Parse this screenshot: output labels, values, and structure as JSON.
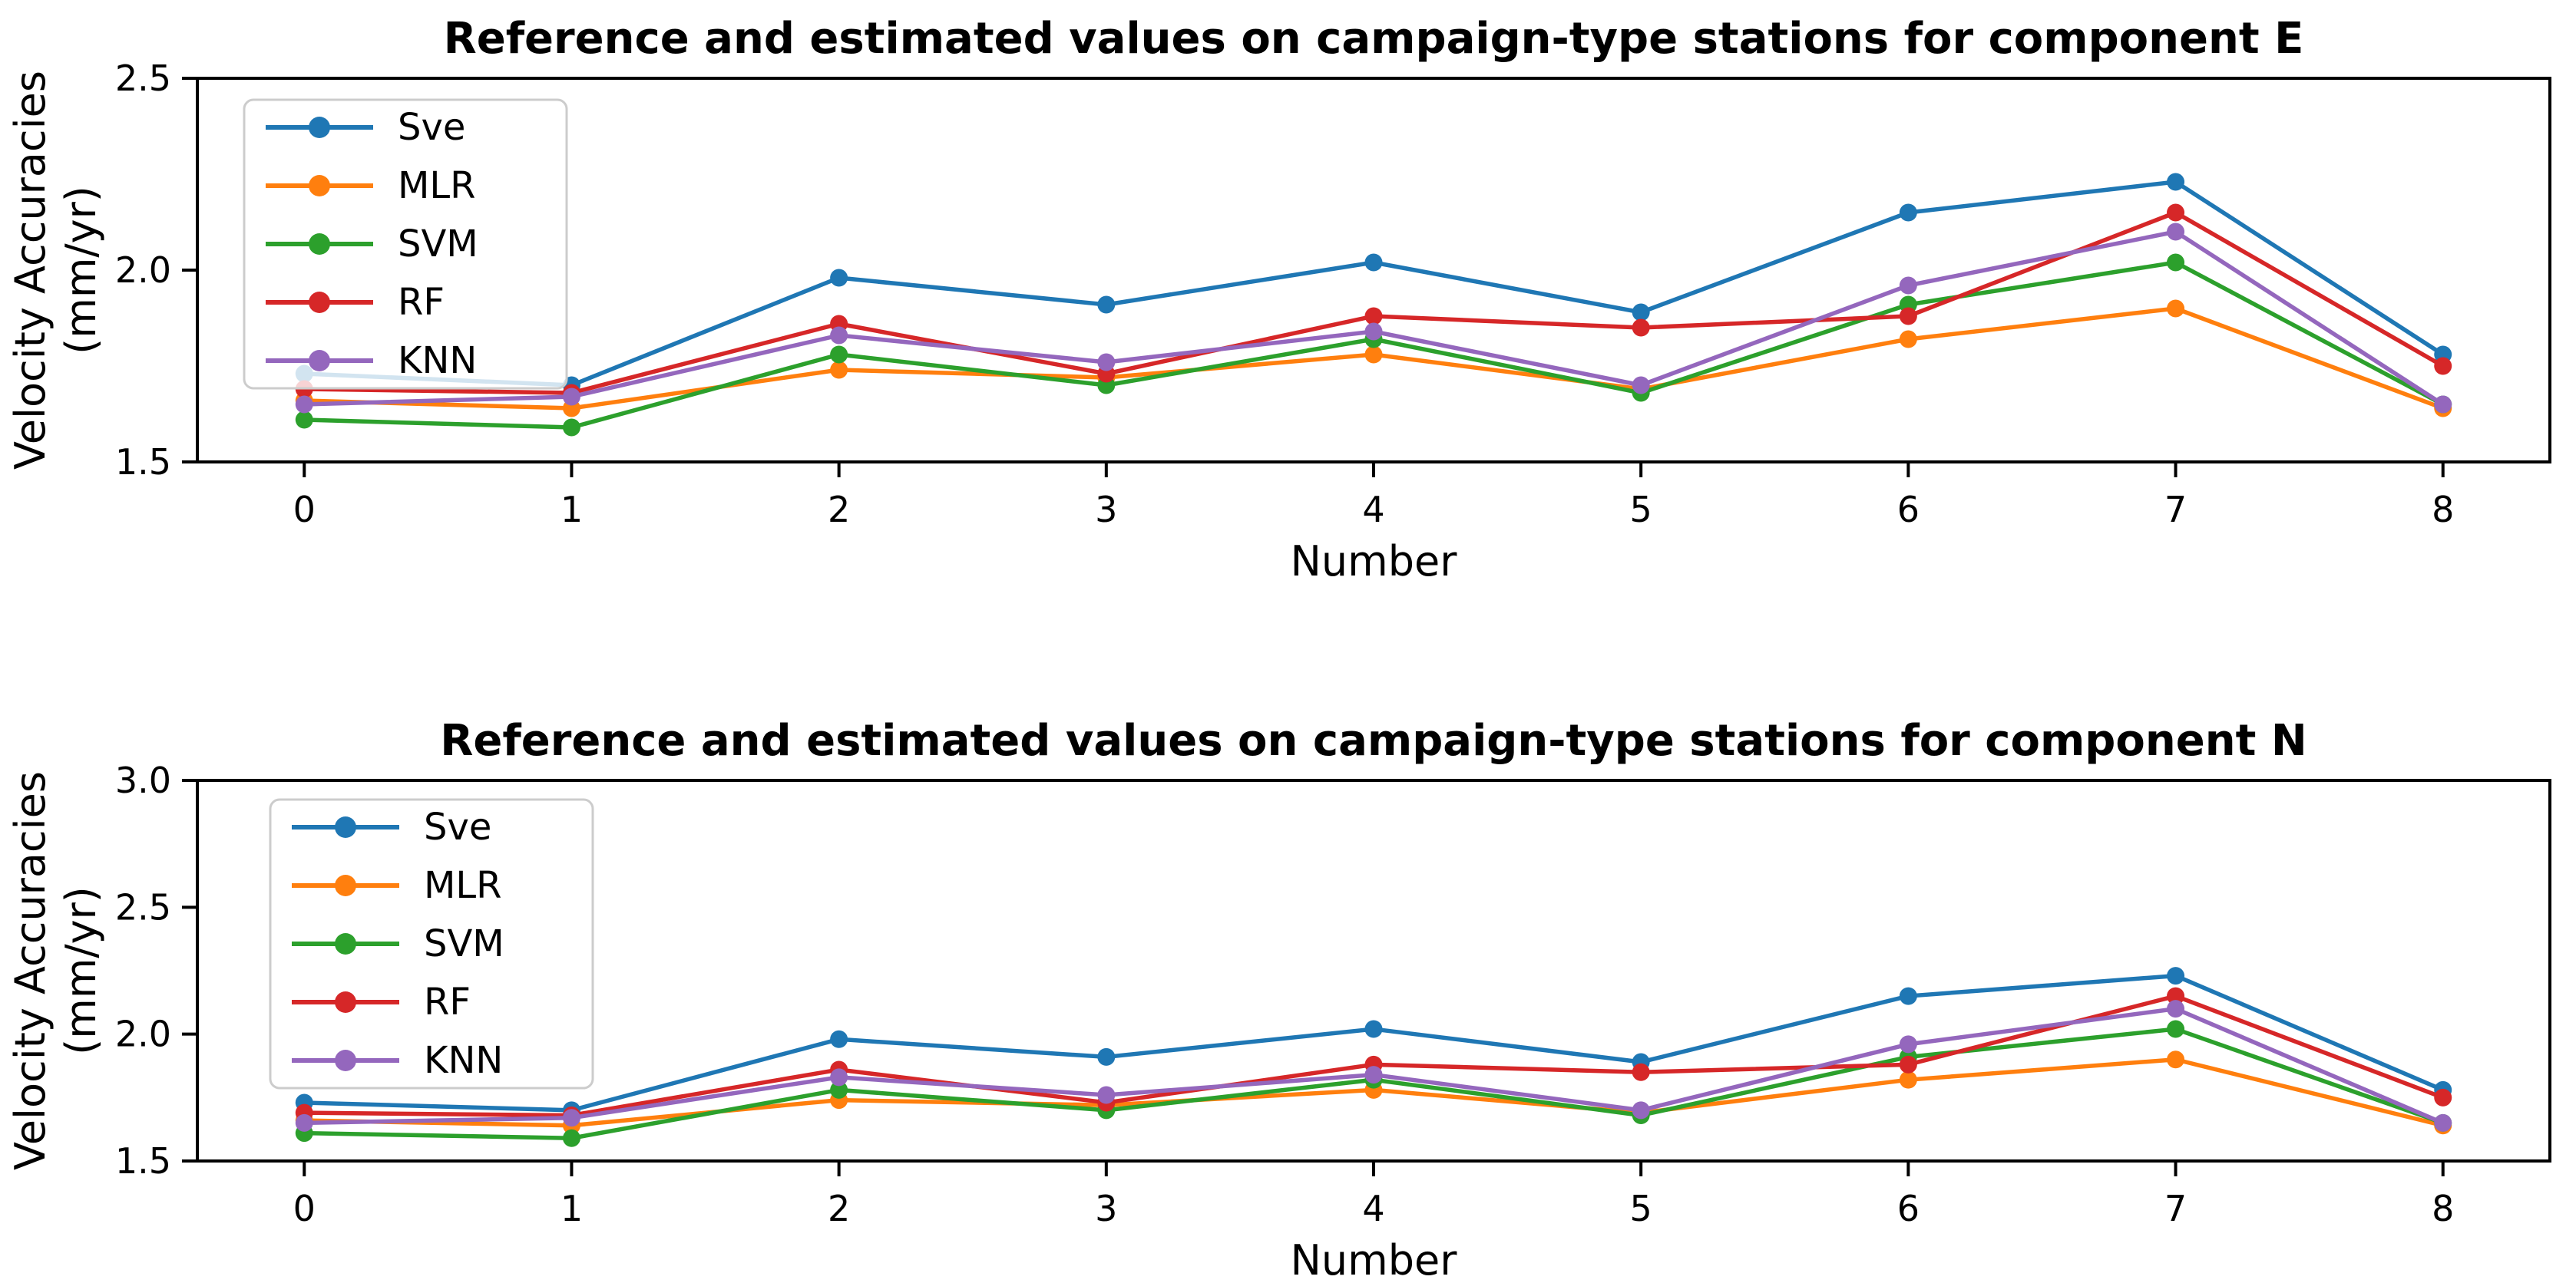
{
  "figure": {
    "background": "#ffffff"
  },
  "chart_data": [
    {
      "id": "component-e",
      "type": "line",
      "title": "Reference and estimated values on campaign-type stations for component E",
      "xlabel": "Number",
      "ylabel_line1": "Velocity Accuracies",
      "ylabel_line2": "(mm/yr)",
      "x": [
        0,
        1,
        2,
        3,
        4,
        5,
        6,
        7,
        8
      ],
      "xtick_labels": [
        "0",
        "1",
        "2",
        "3",
        "4",
        "5",
        "6",
        "7",
        "8"
      ],
      "xlim": [
        -0.4,
        8.4
      ],
      "ylim": [
        1.5,
        2.5
      ],
      "yticks": [
        1.5,
        2.0,
        2.5
      ],
      "ytick_labels": [
        "1.5",
        "2.0",
        "2.5"
      ],
      "grid": false,
      "legend_position": "upper left",
      "series": [
        {
          "name": "Sve",
          "color": "#1f77b4",
          "marker": "circle",
          "values": [
            1.73,
            1.7,
            1.98,
            1.91,
            2.02,
            1.89,
            2.15,
            2.23,
            1.78
          ]
        },
        {
          "name": "MLR",
          "color": "#ff7f0e",
          "marker": "circle",
          "values": [
            1.66,
            1.64,
            1.74,
            1.72,
            1.78,
            1.69,
            1.82,
            1.9,
            1.64
          ]
        },
        {
          "name": "SVM",
          "color": "#2ca02c",
          "marker": "circle",
          "values": [
            1.61,
            1.59,
            1.78,
            1.7,
            1.82,
            1.68,
            1.91,
            2.02,
            1.65
          ]
        },
        {
          "name": "RF",
          "color": "#d62728",
          "marker": "circle",
          "values": [
            1.69,
            1.68,
            1.86,
            1.73,
            1.88,
            1.85,
            1.88,
            2.15,
            1.75
          ]
        },
        {
          "name": "KNN",
          "color": "#9467bd",
          "marker": "circle",
          "values": [
            1.65,
            1.67,
            1.83,
            1.76,
            1.84,
            1.7,
            1.96,
            2.1,
            1.65
          ]
        }
      ]
    },
    {
      "id": "component-n",
      "type": "line",
      "title": "Reference and estimated values on campaign-type stations for component N",
      "xlabel": "Number",
      "ylabel_line1": "Velocity Accuracies",
      "ylabel_line2": "(mm/yr)",
      "x": [
        0,
        1,
        2,
        3,
        4,
        5,
        6,
        7,
        8
      ],
      "xtick_labels": [
        "0",
        "1",
        "2",
        "3",
        "4",
        "5",
        "6",
        "7",
        "8"
      ],
      "xlim": [
        -0.4,
        8.4
      ],
      "ylim": [
        1.5,
        3.0
      ],
      "yticks": [
        1.5,
        2.0,
        2.5,
        3.0
      ],
      "ytick_labels": [
        "1.5",
        "2.0",
        "2.5",
        "3.0"
      ],
      "grid": false,
      "legend_position": "upper left",
      "series": [
        {
          "name": "Sve",
          "color": "#1f77b4",
          "marker": "circle",
          "values": [
            1.73,
            1.7,
            1.98,
            1.91,
            2.02,
            1.89,
            2.15,
            2.23,
            1.78
          ]
        },
        {
          "name": "MLR",
          "color": "#ff7f0e",
          "marker": "circle",
          "values": [
            1.66,
            1.64,
            1.74,
            1.72,
            1.78,
            1.69,
            1.82,
            1.9,
            1.64
          ]
        },
        {
          "name": "SVM",
          "color": "#2ca02c",
          "marker": "circle",
          "values": [
            1.61,
            1.59,
            1.78,
            1.7,
            1.82,
            1.68,
            1.91,
            2.02,
            1.65
          ]
        },
        {
          "name": "RF",
          "color": "#d62728",
          "marker": "circle",
          "values": [
            1.69,
            1.68,
            1.86,
            1.73,
            1.88,
            1.85,
            1.88,
            2.15,
            1.75
          ]
        },
        {
          "name": "KNN",
          "color": "#9467bd",
          "marker": "circle",
          "values": [
            1.65,
            1.67,
            1.83,
            1.76,
            1.84,
            1.7,
            1.96,
            2.1,
            1.65
          ]
        }
      ]
    }
  ]
}
